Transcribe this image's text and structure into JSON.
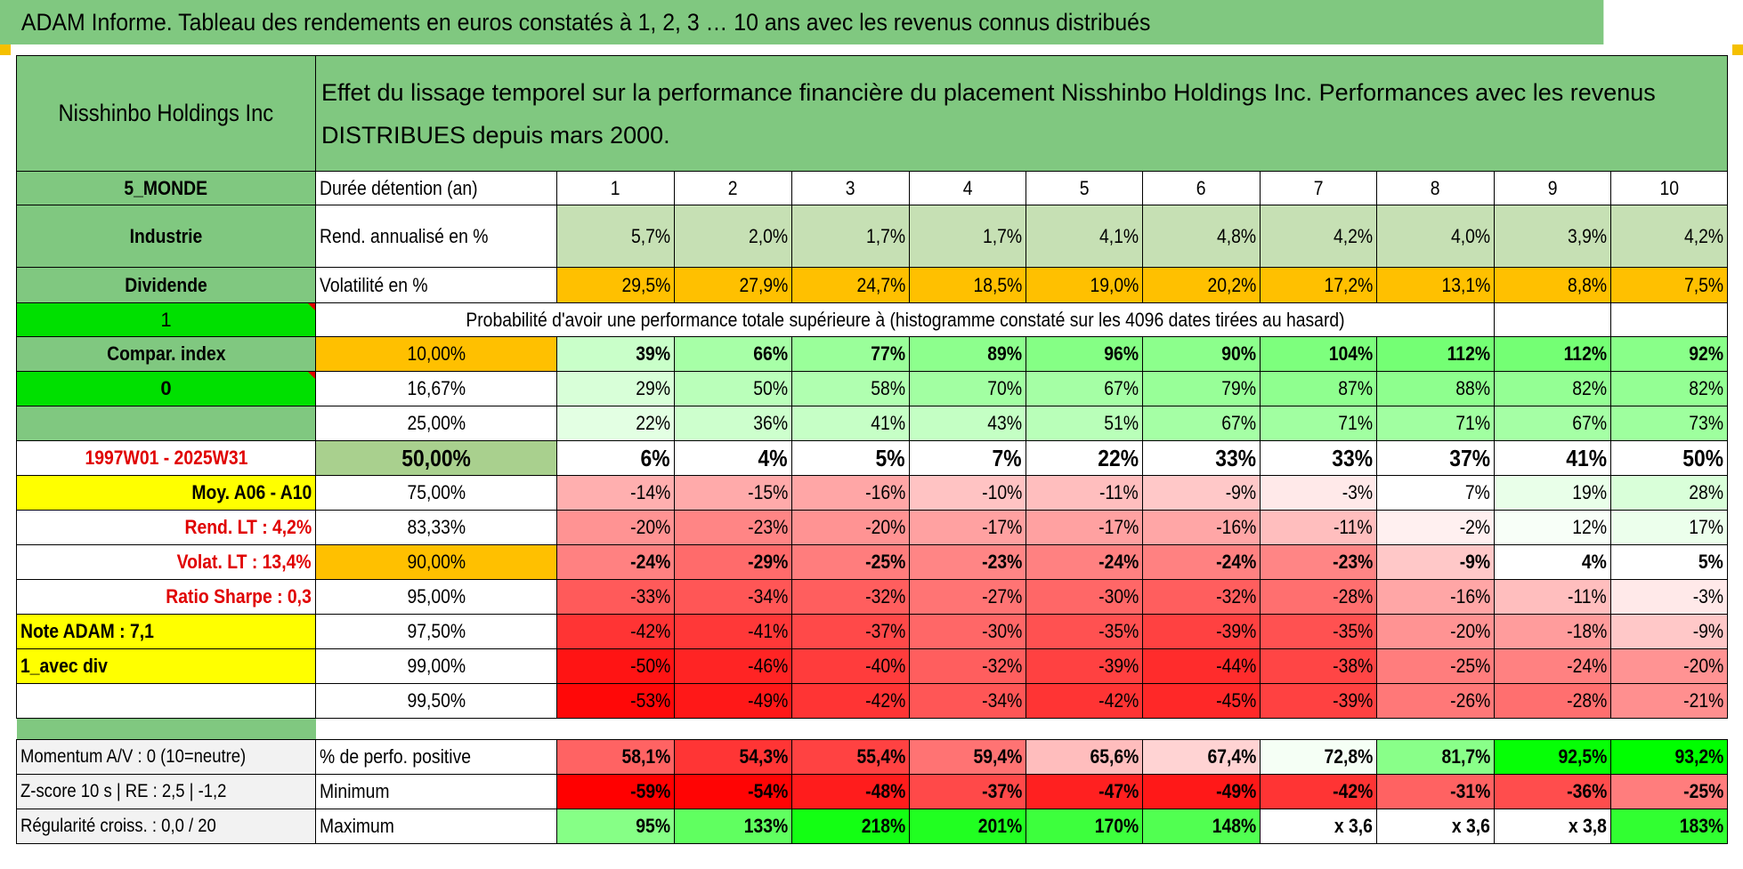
{
  "header": {
    "title": "ADAM Informe. Tableau des rendements en euros constatés à 1, 2, 3 … 10 ans avec les revenus connus distribués"
  },
  "side": {
    "name": "Nisshinbo Holdings Inc",
    "region": "5_MONDE",
    "sector": "Industrie",
    "dividend": "Dividende",
    "flag1": "1",
    "compar": "Compar. index",
    "flag0": "0",
    "period": "1997W01 - 2025W31",
    "moy": "Moy. A06 - A10",
    "rend_lt": "Rend. LT :    4,2%",
    "volat_lt": "Volat. LT :    13,4%",
    "sharpe": "Ratio Sharpe :     0,3",
    "note": "Note ADAM : 7,1",
    "variant": "1_avec div",
    "momentum": "Momentum A/V : 0 (10=neutre)",
    "zscore": "Z-score 10 s | RE : 2,5 | -1,2",
    "regul": "Régularité croiss. : 0,0 / 20"
  },
  "description": "Effet du lissage temporel sur la performance financière du placement Nisshinbo Holdings Inc. Performances avec les revenus DISTRIBUES depuis mars 2000.",
  "labels": {
    "duree": "Durée détention (an)",
    "rend": "Rend. annualisé en %",
    "volat": "Volatilité en %",
    "prob": "Probabilité d'avoir une performance totale supérieure à (histogramme constaté sur les 4096 dates tirées au hasard)",
    "pct_pos": "% de perfo. positive",
    "minimum": "Minimum",
    "maximum": "Maximum"
  },
  "years": [
    "1",
    "2",
    "3",
    "4",
    "5",
    "6",
    "7",
    "8",
    "9",
    "10"
  ],
  "rend": [
    "5,7%",
    "2,0%",
    "1,7%",
    "1,7%",
    "4,1%",
    "4,8%",
    "4,2%",
    "4,0%",
    "3,9%",
    "4,2%"
  ],
  "volat": [
    "29,5%",
    "27,9%",
    "24,7%",
    "18,5%",
    "19,0%",
    "20,2%",
    "17,2%",
    "13,1%",
    "8,8%",
    "7,5%"
  ],
  "quantiles": [
    {
      "q": "10,00%",
      "v": [
        "39%",
        "66%",
        "77%",
        "89%",
        "96%",
        "90%",
        "104%",
        "112%",
        "112%",
        "92%"
      ]
    },
    {
      "q": "16,67%",
      "v": [
        "29%",
        "50%",
        "58%",
        "70%",
        "67%",
        "79%",
        "87%",
        "88%",
        "82%",
        "82%"
      ]
    },
    {
      "q": "25,00%",
      "v": [
        "22%",
        "36%",
        "41%",
        "43%",
        "51%",
        "67%",
        "71%",
        "71%",
        "67%",
        "73%"
      ]
    },
    {
      "q": "50,00%",
      "v": [
        "6%",
        "4%",
        "5%",
        "7%",
        "22%",
        "33%",
        "33%",
        "37%",
        "41%",
        "50%"
      ]
    },
    {
      "q": "75,00%",
      "v": [
        "-14%",
        "-15%",
        "-16%",
        "-10%",
        "-11%",
        "-9%",
        "-3%",
        "7%",
        "19%",
        "28%"
      ]
    },
    {
      "q": "83,33%",
      "v": [
        "-20%",
        "-23%",
        "-20%",
        "-17%",
        "-17%",
        "-16%",
        "-11%",
        "-2%",
        "12%",
        "17%"
      ]
    },
    {
      "q": "90,00%",
      "v": [
        "-24%",
        "-29%",
        "-25%",
        "-23%",
        "-24%",
        "-24%",
        "-23%",
        "-9%",
        "4%",
        "5%"
      ]
    },
    {
      "q": "95,00%",
      "v": [
        "-33%",
        "-34%",
        "-32%",
        "-27%",
        "-30%",
        "-32%",
        "-28%",
        "-16%",
        "-11%",
        "-3%"
      ]
    },
    {
      "q": "97,50%",
      "v": [
        "-42%",
        "-41%",
        "-37%",
        "-30%",
        "-35%",
        "-39%",
        "-35%",
        "-20%",
        "-18%",
        "-9%"
      ]
    },
    {
      "q": "99,00%",
      "v": [
        "-50%",
        "-46%",
        "-40%",
        "-32%",
        "-39%",
        "-44%",
        "-38%",
        "-25%",
        "-24%",
        "-20%"
      ]
    },
    {
      "q": "99,50%",
      "v": [
        "-53%",
        "-49%",
        "-42%",
        "-34%",
        "-42%",
        "-45%",
        "-39%",
        "-26%",
        "-28%",
        "-21%"
      ]
    }
  ],
  "pct_pos": [
    "58,1%",
    "54,3%",
    "55,4%",
    "59,4%",
    "65,6%",
    "67,4%",
    "72,8%",
    "81,7%",
    "92,5%",
    "93,2%"
  ],
  "minimum": [
    "-59%",
    "-54%",
    "-48%",
    "-37%",
    "-47%",
    "-49%",
    "-42%",
    "-31%",
    "-36%",
    "-25%"
  ],
  "maximum": [
    "95%",
    "133%",
    "218%",
    "201%",
    "170%",
    "148%",
    "x 3,6",
    "x 3,6",
    "x 3,8",
    "183%"
  ],
  "colors": {
    "header_green": "#80c880",
    "yellow": "#ffff00",
    "orange": "#ffc000",
    "bright_green": "#00e000",
    "rend_fill": "#c6e0b4",
    "median_label": "#a9d08e",
    "red_text": "#e00000"
  }
}
